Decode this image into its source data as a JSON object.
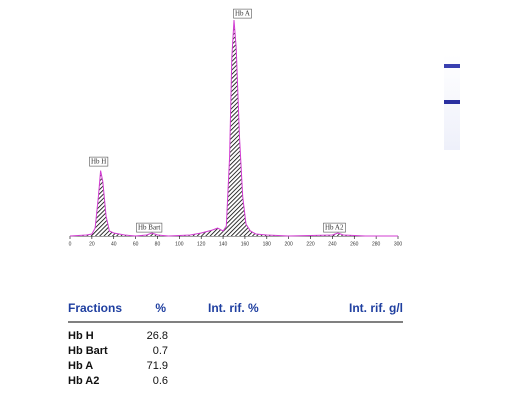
{
  "chart_data": {
    "type": "line",
    "x": [
      0,
      15,
      20,
      23,
      26,
      28,
      30,
      33,
      36,
      40,
      45,
      50,
      60,
      70,
      75,
      80,
      90,
      110,
      120,
      130,
      135,
      140,
      143,
      146,
      148,
      150,
      152,
      155,
      158,
      161,
      165,
      170,
      180,
      200,
      240,
      245,
      250,
      270,
      300
    ],
    "values": [
      0,
      1,
      2,
      8,
      40,
      66,
      55,
      20,
      5,
      3,
      2,
      1,
      0,
      1,
      3,
      1,
      0,
      1,
      3,
      6,
      8,
      5,
      10,
      80,
      180,
      218,
      190,
      100,
      40,
      12,
      5,
      2,
      1,
      0,
      1,
      3,
      1,
      0,
      0
    ],
    "color": "#d23cd2",
    "xlim": [
      0,
      300
    ],
    "ylim": [
      0,
      220
    ],
    "xticks": [
      0,
      20,
      40,
      60,
      80,
      100,
      120,
      140,
      160,
      180,
      200,
      220,
      240,
      260,
      280,
      300
    ],
    "annotations": [
      "Hb H",
      "Hb Bart",
      "Hb A",
      "Hb A2"
    ]
  },
  "table": {
    "headers": [
      "Fractions",
      "%",
      "Int. rif. %",
      "Int. rif. g/l"
    ],
    "rows": [
      [
        "Hb H",
        26.8
      ],
      [
        "Hb Bart",
        0.7
      ],
      [
        "Hb A",
        71.9
      ],
      [
        "Hb A2",
        0.6
      ]
    ]
  }
}
